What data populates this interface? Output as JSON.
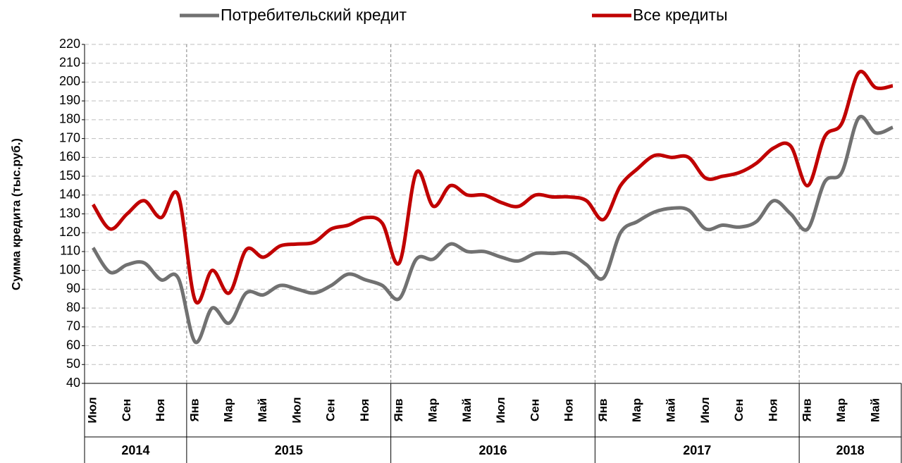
{
  "chart_data": {
    "type": "line",
    "y_label": "Сумма кредита (тыс.руб.)",
    "categories": [
      "Июл",
      null,
      "Сен",
      null,
      "Ноя",
      null,
      "Янв",
      null,
      "Мар",
      null,
      "Май",
      null,
      "Июл",
      null,
      "Сен",
      null,
      "Ноя",
      null,
      "Янв",
      null,
      "Мар",
      null,
      "Май",
      null,
      "Июл",
      null,
      "Сен",
      null,
      "Ноя",
      null,
      "Янв",
      null,
      "Мар",
      null,
      "Май",
      null,
      "Июл",
      null,
      "Сен",
      null,
      "Ноя",
      null,
      "Янв",
      null,
      "Мар",
      null,
      "Май",
      null
    ],
    "groups": [
      {
        "label": "2014",
        "size": 6
      },
      {
        "label": "2015",
        "size": 12
      },
      {
        "label": "2016",
        "size": 12
      },
      {
        "label": "2017",
        "size": 12
      },
      {
        "label": "2018",
        "size": 6
      }
    ],
    "series": [
      {
        "name": "Потребительский кредит",
        "color": "#717171",
        "values": [
          112,
          99,
          103,
          104,
          95,
          96,
          62,
          80,
          72,
          88,
          87,
          92,
          90,
          88,
          92,
          98,
          95,
          92,
          85,
          106,
          106,
          114,
          110,
          110,
          107,
          105,
          109,
          109,
          109,
          103,
          96,
          120,
          126,
          131,
          133,
          132,
          122,
          124,
          123,
          126,
          137,
          130,
          122,
          147,
          152,
          181,
          173,
          176
        ]
      },
      {
        "name": "Все кредиты",
        "color": "#c00000",
        "values": [
          135,
          122,
          130,
          137,
          128,
          140,
          84,
          100,
          88,
          111,
          107,
          113,
          114,
          115,
          122,
          124,
          128,
          125,
          104,
          152,
          134,
          145,
          140,
          140,
          136,
          134,
          140,
          139,
          139,
          137,
          127,
          145,
          154,
          161,
          160,
          160,
          149,
          150,
          152,
          157,
          165,
          166,
          145,
          171,
          178,
          205,
          197,
          198
        ]
      }
    ],
    "ylim": [
      40,
      220
    ],
    "yticks": [
      40,
      50,
      60,
      70,
      80,
      90,
      100,
      110,
      120,
      130,
      140,
      150,
      160,
      170,
      180,
      190,
      200,
      210,
      220
    ],
    "grid": true
  }
}
